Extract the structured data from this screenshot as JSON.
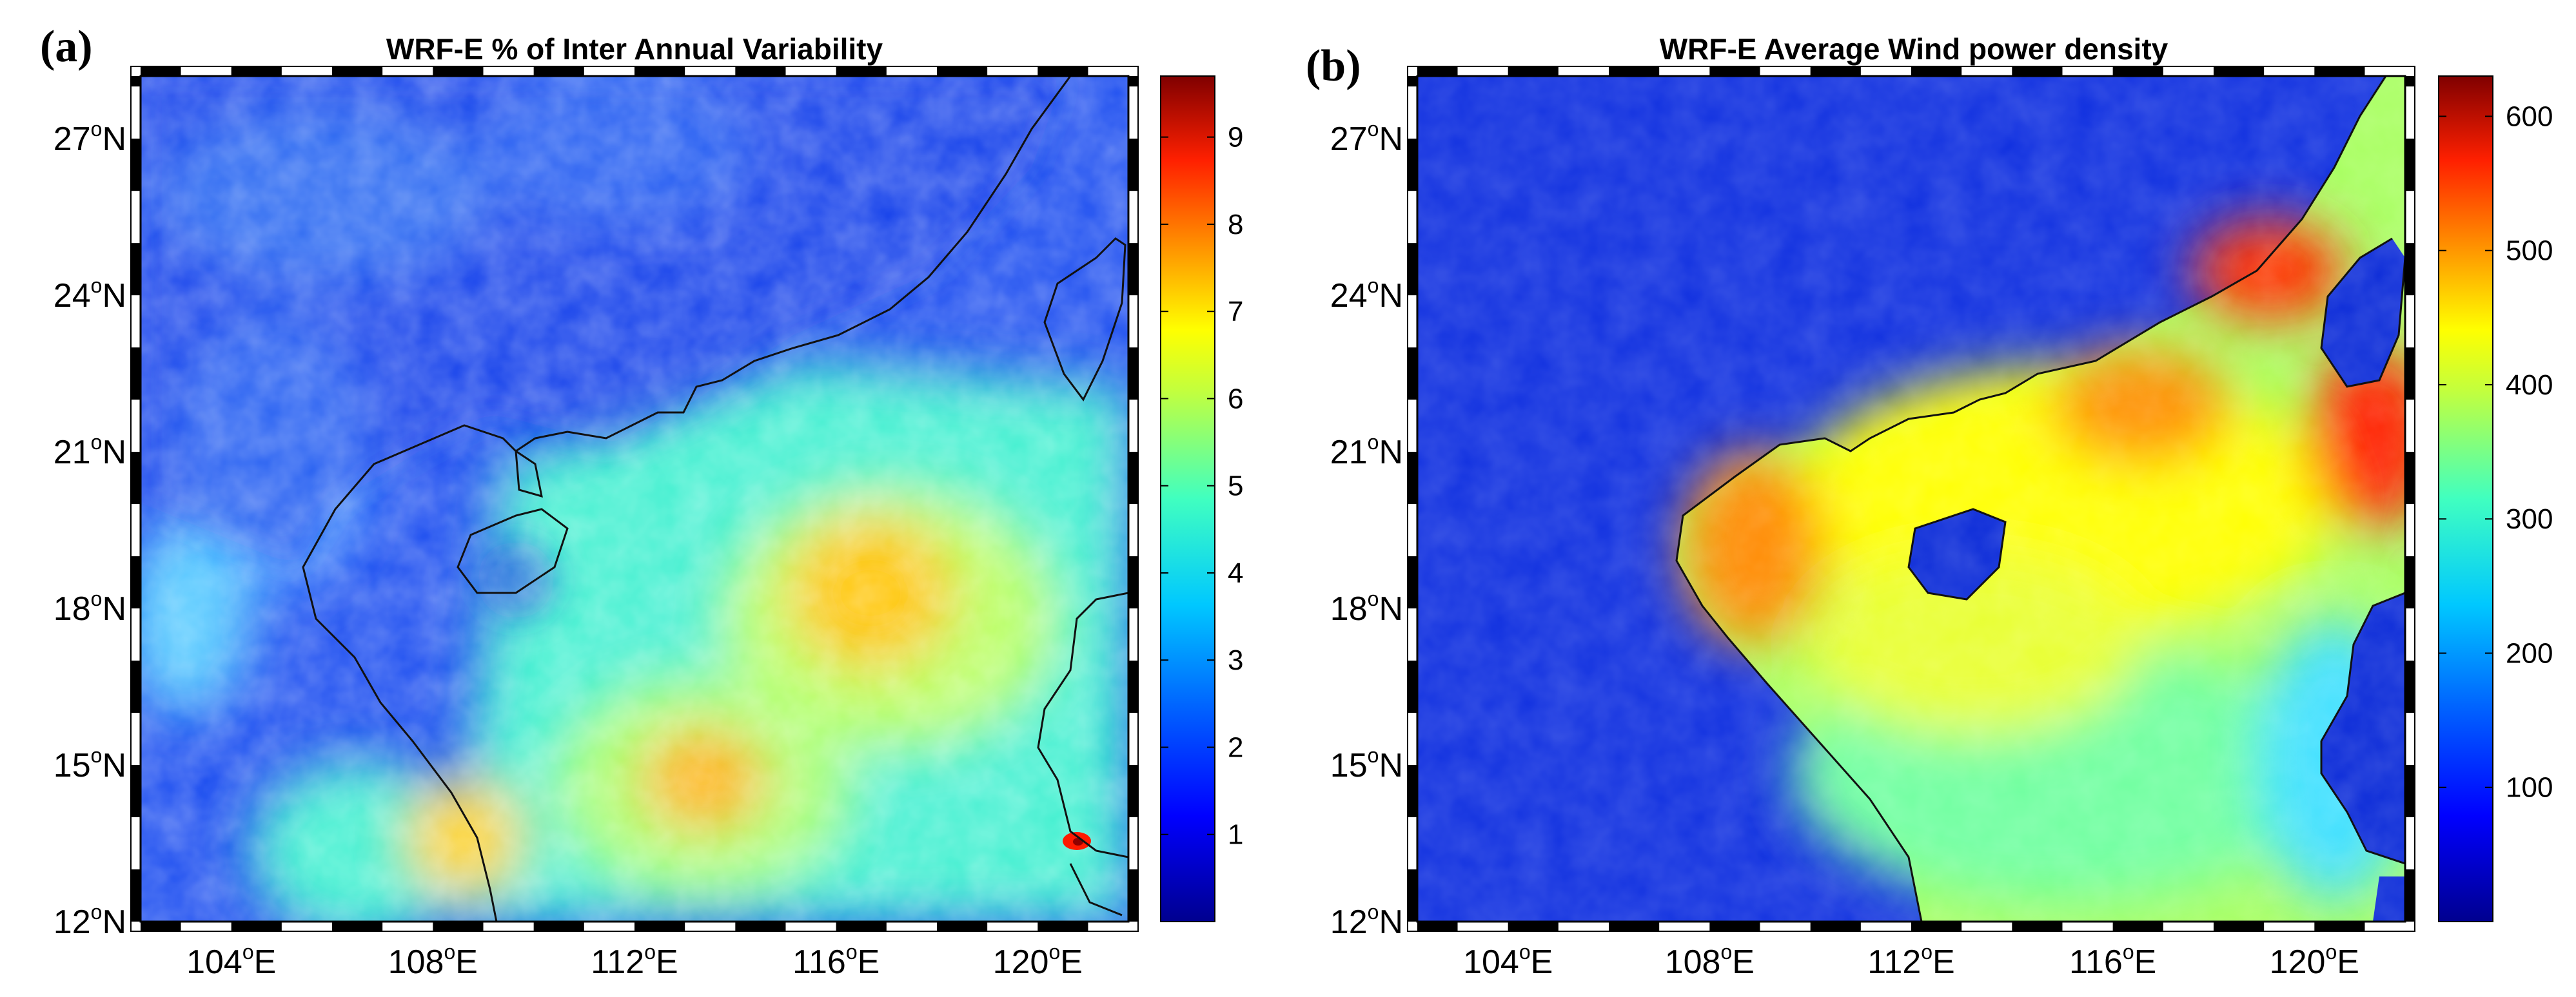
{
  "panels": [
    {
      "letter": "(a)",
      "title": "WRF-E % of Inter Annual Variability",
      "colorbar_ticks": [
        "1",
        "2",
        "3",
        "4",
        "5",
        "6",
        "7",
        "8",
        "9"
      ],
      "colorbar_values": [
        1,
        2,
        3,
        4,
        5,
        6,
        7,
        8,
        9
      ],
      "colorbar_range": [
        0,
        9.7
      ]
    },
    {
      "letter": "(b)",
      "title": "WRF-E Average Wind power density",
      "colorbar_ticks": [
        "100",
        "200",
        "300",
        "400",
        "500",
        "600"
      ],
      "colorbar_values": [
        100,
        200,
        300,
        400,
        500,
        600
      ],
      "colorbar_range": [
        0,
        630
      ]
    }
  ],
  "lat_labels": [
    {
      "deg": "27",
      "hemi": "N",
      "value": 27
    },
    {
      "deg": "24",
      "hemi": "N",
      "value": 24
    },
    {
      "deg": "21",
      "hemi": "N",
      "value": 21
    },
    {
      "deg": "18",
      "hemi": "N",
      "value": 18
    },
    {
      "deg": "15",
      "hemi": "N",
      "value": 15
    },
    {
      "deg": "12",
      "hemi": "N",
      "value": 12
    }
  ],
  "lon_labels": [
    {
      "deg": "104",
      "hemi": "E",
      "value": 104
    },
    {
      "deg": "108",
      "hemi": "E",
      "value": 108
    },
    {
      "deg": "112",
      "hemi": "E",
      "value": 112
    },
    {
      "deg": "116",
      "hemi": "E",
      "value": 116
    },
    {
      "deg": "120",
      "hemi": "E",
      "value": 120
    }
  ],
  "lon_range": [
    102.2,
    121.8
  ],
  "lat_range": [
    12.0,
    28.2
  ],
  "colormap": [
    "#00008f",
    "#0000ff",
    "#0080ff",
    "#00ffff",
    "#80ff80",
    "#ffff00",
    "#ff8000",
    "#ff0000",
    "#800000"
  ]
}
